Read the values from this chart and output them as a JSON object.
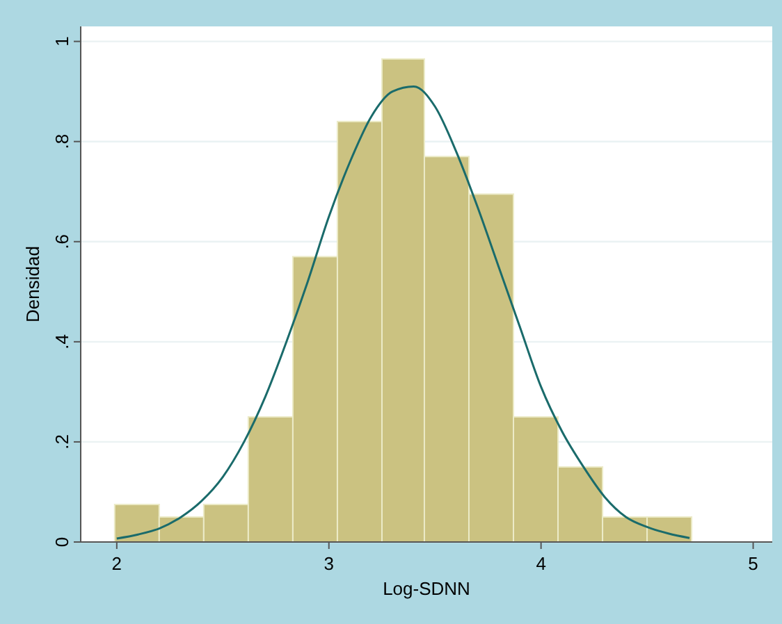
{
  "chart_data": {
    "type": "histogram",
    "xlabel": "Log-SDNN",
    "ylabel": "Densidad",
    "xlim": [
      1.83,
      5.09
    ],
    "ylim": [
      0,
      1.03
    ],
    "xticks": [
      2,
      3,
      4,
      5
    ],
    "yticks": [
      0,
      {
        "value": 0.2,
        "label": ".2"
      },
      {
        "value": 0.4,
        "label": ".4"
      },
      {
        "value": 0.6,
        "label": ".6"
      },
      {
        "value": 0.8,
        "label": ".8"
      },
      1
    ],
    "grid": "y",
    "series": [
      {
        "color": "#cbc281",
        "bins": [
          1.99,
          2.2,
          2.41,
          2.62,
          2.83,
          3.04,
          3.25,
          3.45,
          3.66,
          3.87,
          4.08,
          4.29,
          4.5,
          4.71
        ],
        "values": [
          0.075,
          0.05,
          0.075,
          0.25,
          0.57,
          0.84,
          0.965,
          0.77,
          0.695,
          0.25,
          0.15,
          0.05,
          0.05
        ]
      },
      {
        "type": "line",
        "color": "#1a6b6b",
        "x": [
          2.0,
          2.1,
          2.2,
          2.3,
          2.4,
          2.5,
          2.6,
          2.7,
          2.8,
          2.9,
          3.0,
          3.1,
          3.2,
          3.3,
          3.4,
          3.5,
          3.6,
          3.7,
          3.8,
          3.9,
          4.0,
          4.1,
          4.2,
          4.3,
          4.4,
          4.5,
          4.6,
          4.7
        ],
        "values": [
          0.007,
          0.015,
          0.027,
          0.049,
          0.082,
          0.13,
          0.2,
          0.29,
          0.4,
          0.52,
          0.65,
          0.76,
          0.85,
          0.9,
          0.91,
          0.87,
          0.78,
          0.67,
          0.55,
          0.43,
          0.31,
          0.22,
          0.15,
          0.09,
          0.05,
          0.03,
          0.017,
          0.008
        ]
      }
    ]
  }
}
